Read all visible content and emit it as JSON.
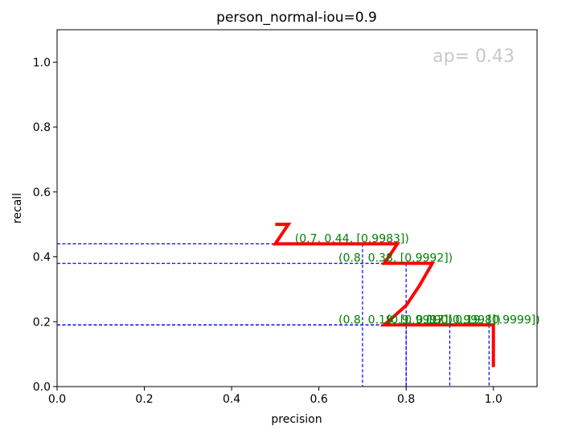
{
  "chart_data": {
    "type": "line",
    "title": "person_normal-iou=0.9",
    "xlabel": "precision",
    "ylabel": "recall",
    "xlim": [
      0.0,
      1.1
    ],
    "ylim": [
      0.0,
      1.1
    ],
    "xticks": [
      "0.0",
      "0.2",
      "0.4",
      "0.6",
      "0.8",
      "1.0"
    ],
    "yticks": [
      "0.0",
      "0.2",
      "0.4",
      "0.6",
      "0.8",
      "1.0"
    ],
    "xtick_values": [
      0.0,
      0.2,
      0.4,
      0.6,
      0.8,
      1.0
    ],
    "ytick_values": [
      0.0,
      0.2,
      0.4,
      0.6,
      0.8,
      1.0
    ],
    "ap_text": "ap= 0.43",
    "colors": {
      "curve": "#ff0000",
      "guides": "#0000ff",
      "annotations": "#008000",
      "ap": "#c8c8c8"
    },
    "curve": {
      "x": [
        0.5,
        0.53,
        0.5,
        0.78,
        0.75,
        0.86,
        0.83,
        0.8,
        0.75,
        1.0,
        1.0
      ],
      "y": [
        0.5,
        0.5,
        0.44,
        0.44,
        0.38,
        0.38,
        0.31,
        0.25,
        0.19,
        0.19,
        0.06
      ]
    },
    "guides": [
      {
        "x": 0.7,
        "y": 0.44
      },
      {
        "x": 0.8,
        "y": 0.38
      },
      {
        "x": 0.8,
        "y": 0.19
      },
      {
        "x": 0.9,
        "y": 0.19
      },
      {
        "x": 0.99,
        "y": 0.19
      }
    ],
    "annotations": [
      {
        "text": "(0.7, 0.44, [0.9983])",
        "x": 0.545,
        "y": 0.44
      },
      {
        "text": "(0.8, 0.38, [0.9992])",
        "x": 0.645,
        "y": 0.38
      },
      {
        "text": "(0.8, 0.19, [0.9997])",
        "x": 0.645,
        "y": 0.19
      },
      {
        "text": "(0.9, 0.19, [0.9998])",
        "x": 0.755,
        "y": 0.19
      },
      {
        "text": "(1.0, 0.19, [0.9999])",
        "x": 0.845,
        "y": 0.19
      }
    ]
  }
}
